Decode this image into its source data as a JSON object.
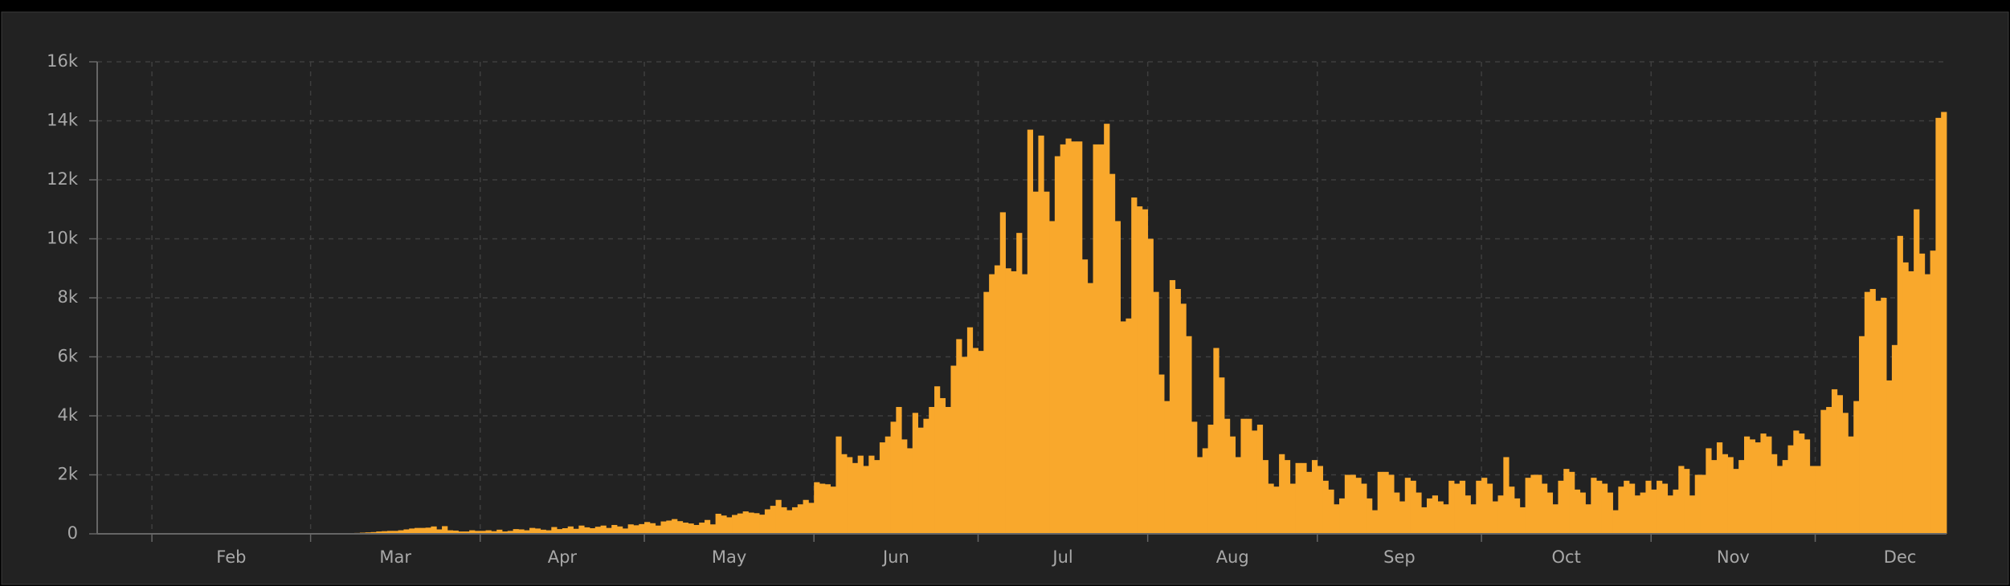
{
  "chart_data": {
    "type": "bar",
    "color": "#f9a82c",
    "grid": true,
    "x_axis_labels": [
      "Feb",
      "Mar",
      "Apr",
      "May",
      "Jun",
      "Jul",
      "Aug",
      "Sep",
      "Oct",
      "Nov",
      "Dec"
    ],
    "ylim": [
      0,
      16000
    ],
    "yticks": [
      0,
      {
        "value": 2000,
        "label": "2k"
      },
      {
        "value": 4000,
        "label": "4k"
      },
      {
        "value": 6000,
        "label": "6k"
      },
      {
        "value": 8000,
        "label": "8k"
      },
      {
        "value": 10000,
        "label": "10k"
      },
      {
        "value": 12000,
        "label": "12k"
      },
      {
        "value": 14000,
        "label": "14k"
      },
      {
        "value": 16000,
        "label": "16k"
      }
    ],
    "values": [
      0,
      0,
      0,
      0,
      0,
      0,
      0,
      0,
      0,
      0,
      0,
      0,
      0,
      0,
      0,
      0,
      0,
      0,
      0,
      0,
      0,
      0,
      0,
      0,
      0,
      0,
      0,
      0,
      0,
      0,
      0,
      0,
      0,
      0,
      0,
      0,
      0,
      0,
      0,
      5,
      5,
      10,
      10,
      15,
      20,
      20,
      25,
      30,
      40,
      50,
      60,
      80,
      90,
      100,
      100,
      120,
      150,
      180,
      200,
      200,
      210,
      250,
      150,
      260,
      120,
      110,
      80,
      80,
      120,
      100,
      100,
      120,
      90,
      140,
      80,
      100,
      160,
      150,
      120,
      200,
      180,
      140,
      120,
      230,
      160,
      190,
      250,
      170,
      280,
      220,
      190,
      240,
      280,
      200,
      300,
      250,
      180,
      320,
      290,
      330,
      400,
      360,
      280,
      420,
      450,
      500,
      430,
      380,
      350,
      300,
      380,
      470,
      320,
      680,
      620,
      560,
      640,
      690,
      760,
      720,
      700,
      650,
      830,
      950,
      1150,
      900,
      800,
      900,
      1000,
      1150,
      1050,
      1750,
      1700,
      1680,
      1600,
      3300,
      2700,
      2600,
      2400,
      2650,
      2300,
      2650,
      2500,
      3100,
      3300,
      3800,
      4300,
      3200,
      2900,
      4100,
      3600,
      3900,
      4300,
      5000,
      4600,
      4300,
      5700,
      6600,
      6000,
      7000,
      6300,
      6200,
      8200,
      8800,
      9100,
      10900,
      9000,
      8900,
      10200,
      8800,
      13700,
      11600,
      13500,
      11600,
      10600,
      12800,
      13200,
      13400,
      13300,
      13300,
      9300,
      8500,
      13200,
      13200,
      13900,
      12200,
      10600,
      7200,
      7300,
      11400,
      11100,
      11000,
      10000,
      8200,
      5400,
      4500,
      8600,
      8300,
      7800,
      6700,
      3800,
      2600,
      2900,
      3700,
      6300,
      5300,
      3900,
      3300,
      2600,
      3900,
      3900,
      3500,
      3700,
      2500,
      1700,
      1600,
      2700,
      2500,
      1700,
      2400,
      2400,
      2100,
      2500,
      2300,
      1800,
      1500,
      1000,
      1200,
      2000,
      2000,
      1900,
      1700,
      1200,
      800,
      2100,
      2100,
      2000,
      1400,
      1100,
      1900,
      1800,
      1400,
      900,
      1200,
      1300,
      1100,
      1000,
      1800,
      1700,
      1800,
      1300,
      1000,
      1800,
      1900,
      1700,
      1100,
      1300,
      2600,
      1600,
      1200,
      900,
      1900,
      2000,
      2000,
      1700,
      1400,
      1000,
      1800,
      2200,
      2100,
      1500,
      1400,
      1000,
      1900,
      1800,
      1700,
      1400,
      800,
      1600,
      1800,
      1700,
      1300,
      1400,
      1800,
      1500,
      1800,
      1700,
      1300,
      1500,
      2300,
      2200,
      1300,
      2000,
      2000,
      2900,
      2500,
      3100,
      2700,
      2600,
      2200,
      2500,
      3300,
      3200,
      3100,
      3400,
      3300,
      2700,
      2300,
      2500,
      3000,
      3500,
      3400,
      3200,
      2300,
      2300,
      4200,
      4300,
      4900,
      4700,
      4100,
      3300,
      4500,
      6700,
      8200,
      8300,
      7900,
      8000,
      5200,
      6400,
      10100,
      9200,
      8900,
      11000,
      9500,
      8800,
      9600,
      14100,
      14300
    ]
  }
}
